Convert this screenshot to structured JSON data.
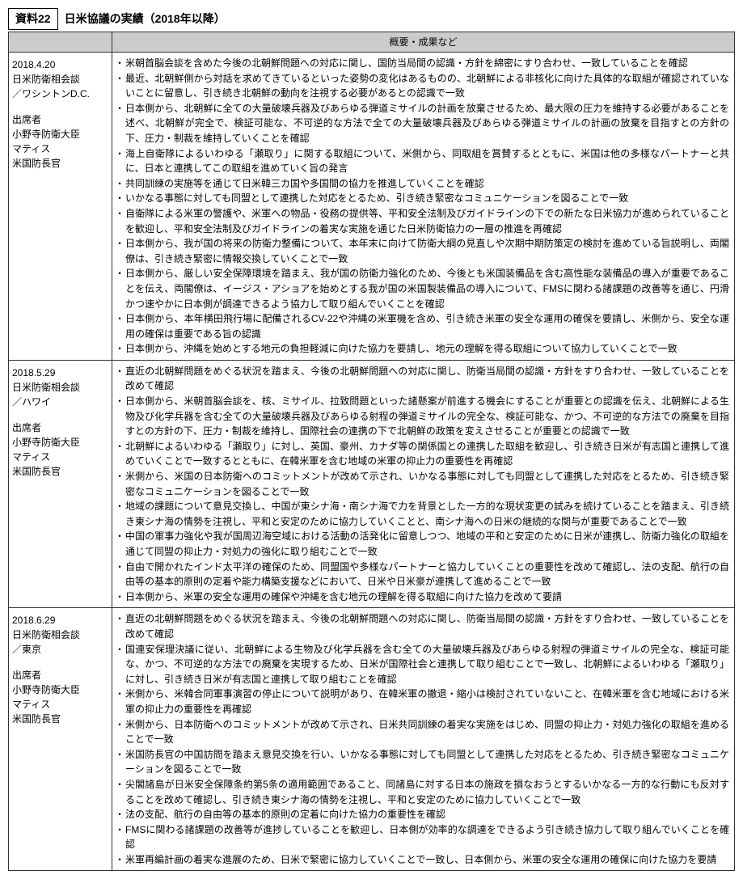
{
  "header": {
    "label": "資料22",
    "title": "日米協議の実績（2018年以降）"
  },
  "table": {
    "header": {
      "meta": "",
      "content": "概要・成果など"
    },
    "rows": [
      {
        "meta": {
          "date": "2018.4.20",
          "event": "日米防衛相会談",
          "location": "／ワシントンD.C.",
          "attendees_label": "出席者",
          "attendee1": "小野寺防衛大臣",
          "attendee2": "マティス",
          "attendee2_title": "米国防長官"
        },
        "bullets": [
          "米朝首脳会談を含めた今後の北朝鮮問題への対応に関し、国防当局間の認識・方針を綿密にすり合わせ、一致していることを確認",
          "最近、北朝鮮側から対話を求めてきているといった姿勢の変化はあるものの、北朝鮮による非核化に向けた具体的な取組が確認されていないことに留意し、引き続き北朝鮮の動向を注視する必要があるとの認識で一致",
          "日本側から、北朝鮮に全ての大量破壊兵器及びあらゆる弾道ミサイルの計画を放棄させるため、最大限の圧力を維持する必要があることを述べ、北朝鮮が完全で、検証可能な、不可逆的な方法で全ての大量破壊兵器及びあらゆる弾道ミサイルの計画の放棄を目指すとの方針の下、圧力・制裁を維持していくことを確認",
          "海上自衛隊によるいわゆる「瀬取り」に関する取組について、米側から、同取組を賞賛するとともに、米国は他の多様なパートナーと共に、日本と連携してこの取組を進めていく旨の発言",
          "共同訓練の実施等を通じて日米韓三カ国や多国間の協力を推進していくことを確認",
          "いかなる事態に対しても同盟として連携した対応をとるため、引き続き緊密なコミュニケーションを図ることで一致",
          "自衛隊による米軍の警護や、米軍への物品・役務の提供等、平和安全法制及びガイドラインの下での新たな日米協力が進められていることを歓迎し、平和安全法制及びガイドラインの着実な実施を通じた日米防衛協力の一層の推進を再確認",
          "日本側から、我が国の将来の防衛力整備について、本年末に向けて防衛大綱の見直しや次期中期防策定の検討を進めている旨説明し、両閣僚は、引き続き緊密に情報交換していくことで一致",
          "日本側から、厳しい安全保障環境を踏まえ、我が国の防衛力強化のため、今後とも米国装備品を含む高性能な装備品の導入が重要であることを伝え、両閣僚は、イージス・アショアを始めとする我が国の米国製装備品の導入について、FMSに関わる諸課題の改善等を通じ、円滑かつ速やかに日本側が調達できるよう協力して取り組んでいくことを確認",
          "日本側から、本年横田飛行場に配備されるCV-22や沖縄の米軍機を含め、引き続き米軍の安全な運用の確保を要請し、米側から、安全な運用の確保は重要である旨の認識",
          "日本側から、沖縄を始めとする地元の負担軽減に向けた協力を要請し、地元の理解を得る取組について協力していくことで一致"
        ]
      },
      {
        "meta": {
          "date": "2018.5.29",
          "event": "日米防衛相会談",
          "location": "／ハワイ",
          "attendees_label": "出席者",
          "attendee1": "小野寺防衛大臣",
          "attendee2": "マティス",
          "attendee2_title": "米国防長官"
        },
        "bullets": [
          "直近の北朝鮮問題をめぐる状況を踏まえ、今後の北朝鮮問題への対応に関し、防衛当局間の認識・方針をすり合わせ、一致していることを改めて確認",
          "日本側から、米朝首脳会談を、核、ミサイル、拉致問題といった諸懸案が前進する機会にすることが重要との認識を伝え、北朝鮮による生物及び化学兵器を含む全ての大量破壊兵器及びあらゆる射程の弾道ミサイルの完全な、検証可能な、かつ、不可逆的な方法での廃棄を目指すとの方針の下、圧力・制裁を維持し、国際社会の連携の下で北朝鮮の政策を変えさせることが重要との認識で一致",
          "北朝鮮によるいわゆる「瀬取り」に対し、英国、豪州、カナダ等の関係国との連携した取組を歓迎し、引き続き日米が有志国と連携して進めていくことで一致するとともに、在韓米軍を含む地域の米軍の抑止力の重要性を再確認",
          "米側から、米国の日本防衛へのコミットメントが改めて示され、いかなる事態に対しても同盟として連携した対応をとるため、引き続き緊密なコミュニケーションを図ることで一致",
          "地域の課題について意見交換し、中国が東シナ海・南シナ海で力を背景とした一方的な現状変更の試みを続けていることを踏まえ、引き続き東シナ海の情勢を注視し、平和と安定のために協力していくことと、南シナ海への日米の継続的な関与が重要であることで一致",
          "中国の軍事力強化や我が国周辺海空域における活動の活発化に留意しつつ、地域の平和と安定のために日米が連携し、防衛力強化の取組を通じて同盟の抑止力・対処力の強化に取り組むことで一致",
          "自由で開かれたインド太平洋の確保のため、同盟国や多様なパートナーと協力していくことの重要性を改めて確認し、法の支配、航行の自由等の基本的原則の定着や能力構築支援などにおいて、日米や日米豪が連携して進めることで一致",
          "日本側から、米軍の安全な運用の確保や沖縄を含む地元の理解を得る取組に向けた協力を改めて要請"
        ]
      },
      {
        "meta": {
          "date": "2018.6.29",
          "event": "日米防衛相会談",
          "location": "／東京",
          "attendees_label": "出席者",
          "attendee1": "小野寺防衛大臣",
          "attendee2": "マティス",
          "attendee2_title": "米国防長官"
        },
        "bullets": [
          "直近の北朝鮮問題をめぐる状況を踏まえ、今後の北朝鮮問題への対応に関し、防衛当局間の認識・方針をすり合わせ、一致していることを改めて確認",
          "国連安保理決議に従い、北朝鮮による生物及び化学兵器を含む全ての大量破壊兵器及びあらゆる射程の弾道ミサイルの完全な、検証可能な、かつ、不可逆的な方法での廃棄を実現するため、日米が国際社会と連携して取り組むことで一致し、北朝鮮によるいわゆる「瀬取り」に対し、引き続き日米が有志国と連携して取り組むことを確認",
          "米側から、米韓合同軍事演習の停止について説明があり、在韓米軍の撤退・縮小は検討されていないこと、在韓米軍を含む地域における米軍の抑止力の重要性を再確認",
          "米側から、日本防衛へのコミットメントが改めて示され、日米共同訓練の着実な実施をはじめ、同盟の抑止力・対処力強化の取組を進めることで一致",
          "米国防長官の中国訪問を踏まえ意見交換を行い、いかなる事態に対しても同盟として連携した対応をとるため、引き続き緊密なコミュニケーションを図ることで一致",
          "尖閣諸島が日米安全保障条約第5条の適用範囲であること、同諸島に対する日本の施政を損なおうとするいかなる一方的な行動にも反対することを改めて確認し、引き続き東シナ海の情勢を注視し、平和と安定のために協力していくことで一致",
          "法の支配、航行の自由等の基本的原則の定着に向けた協力の重要性を確認",
          "FMSに関わる諸課題の改善等が進捗していることを歓迎し、日本側が効率的な調達をできるよう引き続き協力して取り組んでいくことを確認",
          "米軍再編計画の着実な進展のため、日米で緊密に協力していくことで一致し、日本側から、米軍の安全な運用の確保に向けた協力を要請"
        ]
      }
    ]
  }
}
